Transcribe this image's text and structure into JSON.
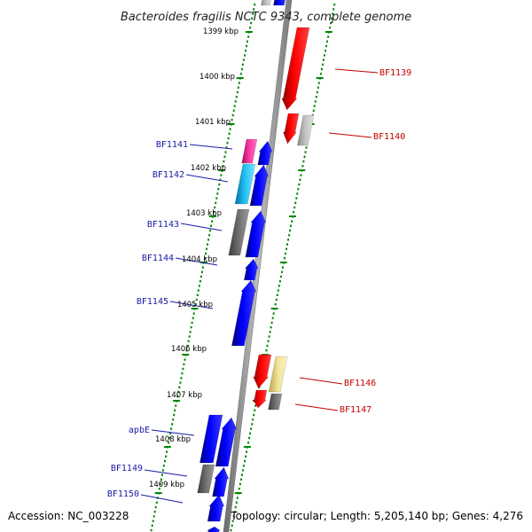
{
  "title": "Bacteroides fragilis NCTC 9343, complete genome",
  "footer": {
    "accession": "Accession: NC_003228",
    "summary": "Topology: circular; Length: 5,205,140 bp; Genes: 4,276"
  },
  "colors": {
    "forward_strand": "#0000ee",
    "reverse_strand": "#ee0000",
    "ruler": "#008800",
    "backbone": "#8a8a8a",
    "label_left": "#1a1aa6",
    "label_right": "#c40000"
  },
  "ruler_labels": [
    "1399 kbp",
    "1400 kbp",
    "1401 kbp",
    "1402 kbp",
    "1403 kbp",
    "1404 kbp",
    "1405 kbp",
    "1406 kbp",
    "1407 kbp",
    "1408 kbp",
    "1409 kbp"
  ],
  "gene_labels_left": [
    "BF1141",
    "BF1142",
    "BF1143",
    "BF1144",
    "BF1145",
    "apbE",
    "BF1149",
    "BF1150"
  ],
  "gene_labels_right": [
    "BF1139",
    "BF1140",
    "BF1146",
    "BF1147"
  ]
}
